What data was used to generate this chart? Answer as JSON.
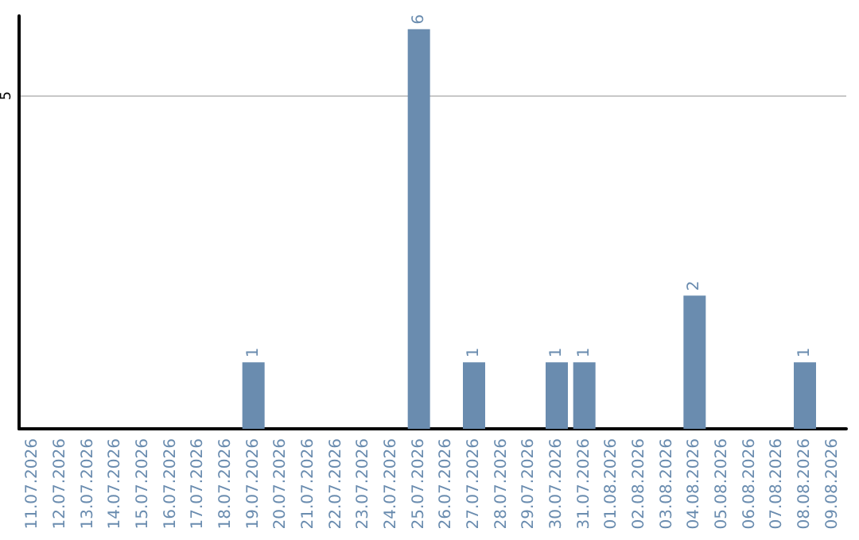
{
  "chart_data": {
    "type": "bar",
    "categories": [
      "11.07.2026",
      "12.07.2026",
      "13.07.2026",
      "14.07.2026",
      "15.07.2026",
      "16.07.2026",
      "17.07.2026",
      "18.07.2026",
      "19.07.2026",
      "20.07.2026",
      "21.07.2026",
      "22.07.2026",
      "23.07.2026",
      "24.07.2026",
      "25.07.2026",
      "26.07.2026",
      "27.07.2026",
      "28.07.2026",
      "29.07.2026",
      "30.07.2026",
      "31.07.2026",
      "01.08.2026",
      "02.08.2026",
      "03.08.2026",
      "04.08.2026",
      "05.08.2026",
      "06.08.2026",
      "07.08.2026",
      "08.08.2026",
      "09.08.2026"
    ],
    "values": [
      null,
      null,
      null,
      null,
      null,
      null,
      null,
      null,
      1,
      null,
      null,
      null,
      null,
      null,
      6,
      null,
      1,
      null,
      null,
      1,
      1,
      null,
      null,
      null,
      2,
      null,
      null,
      null,
      1,
      null
    ],
    "color": "#6a8caf",
    "ylim": [
      0,
      6.2
    ],
    "yticks": [
      5
    ],
    "grid": "y",
    "data_labels": true
  }
}
